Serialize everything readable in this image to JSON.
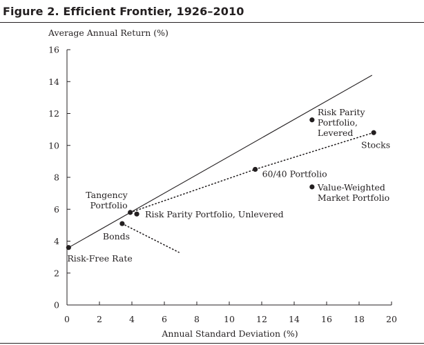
{
  "figure": {
    "title": "Figure  2.    Efficient Frontier, 1926–2010"
  },
  "chart_data": {
    "type": "scatter",
    "title": "Efficient Frontier, 1926–2010",
    "xlabel": "Annual Standard Deviation (%)",
    "ylabel": "Average Annual Return (%)",
    "xlim": [
      0,
      20
    ],
    "ylim": [
      0,
      16
    ],
    "xticks": [
      0,
      2,
      4,
      6,
      8,
      10,
      12,
      14,
      16,
      18,
      20
    ],
    "yticks": [
      0,
      2,
      4,
      6,
      8,
      10,
      12,
      14,
      16
    ],
    "grid": false,
    "series": [
      {
        "style": "solid",
        "points": [
          [
            0.1,
            3.6
          ],
          [
            18.8,
            14.4
          ]
        ]
      },
      {
        "style": "dotted",
        "points": [
          [
            3.9,
            5.8
          ],
          [
            11.6,
            8.5
          ],
          [
            18.9,
            10.8
          ]
        ]
      },
      {
        "style": "dotted",
        "points": [
          [
            3.4,
            5.1
          ],
          [
            6.9,
            3.3
          ]
        ]
      }
    ],
    "points": [
      {
        "x": 0.1,
        "y": 3.6,
        "label": [
          "Risk-Free Rate"
        ]
      },
      {
        "x": 3.4,
        "y": 5.1,
        "label": [
          "Bonds"
        ]
      },
      {
        "x": 3.9,
        "y": 5.8,
        "label": [
          "Tangency",
          "Portfolio"
        ]
      },
      {
        "x": 4.3,
        "y": 5.7,
        "label": [
          "Risk Parity Portfolio, Unlevered"
        ]
      },
      {
        "x": 11.6,
        "y": 8.5,
        "label": [
          "60/40 Portfolio"
        ]
      },
      {
        "x": 15.1,
        "y": 7.4,
        "label": [
          "Value-Weighted",
          "Market Portfolio"
        ]
      },
      {
        "x": 15.1,
        "y": 11.6,
        "label": [
          "Risk Parity",
          "Portfolio,",
          "Levered"
        ]
      },
      {
        "x": 18.9,
        "y": 10.8,
        "label": [
          "Stocks"
        ]
      }
    ]
  }
}
